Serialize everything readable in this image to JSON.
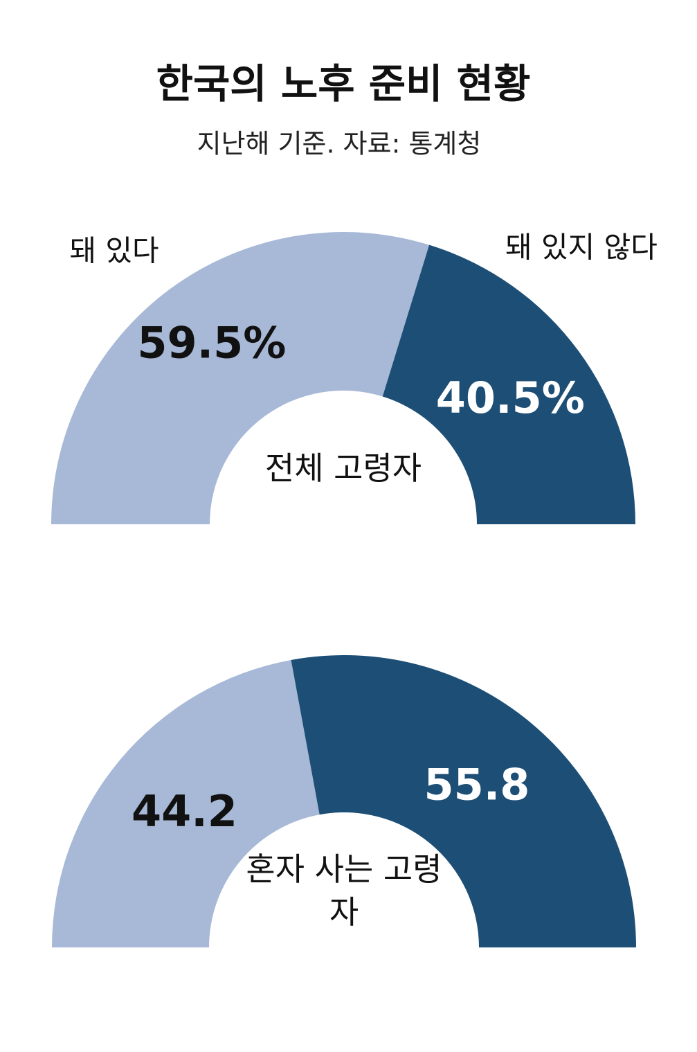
{
  "title": "한국의 노후 준비 현황",
  "subtitle": "지난해 기준. 자료: 통계청",
  "chart_data": [
    {
      "type": "half-donut",
      "categories": [
        "돼 있다",
        "돼 있지 않다"
      ],
      "values": [
        59.5,
        40.5
      ],
      "value_labels": [
        "59.5%",
        "40.5%"
      ],
      "colors": [
        "#a7b9d6",
        "#1d4e75"
      ],
      "label_colors": [
        "#111111",
        "#ffffff"
      ],
      "center_label": "전체 고령자"
    },
    {
      "type": "half-donut",
      "values": [
        44.2,
        55.8
      ],
      "colors": [
        "#a7b9d6",
        "#1d4e75"
      ],
      "label_colors": [
        "#111111",
        "#ffffff"
      ],
      "center_label": "혼자 사는 고령자"
    }
  ]
}
